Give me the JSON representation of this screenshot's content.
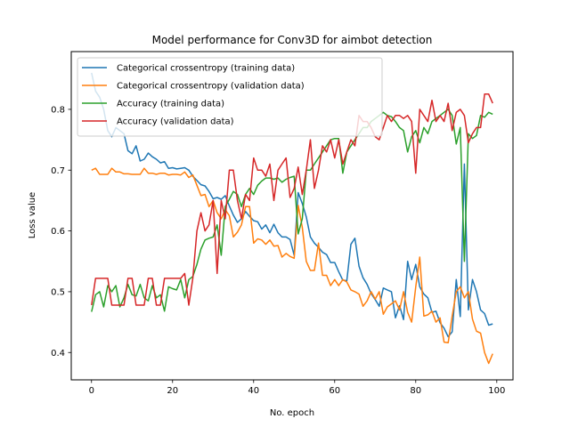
{
  "chart_data": {
    "type": "line",
    "title": "Model performance for Conv3D for aimbot detection",
    "xlabel": "No. epoch",
    "ylabel": "Loss value",
    "xlim": [
      -5,
      104
    ],
    "ylim": [
      0.355,
      0.895
    ],
    "xticks": [
      0,
      20,
      40,
      60,
      80,
      100
    ],
    "yticks": [
      0.4,
      0.5,
      0.6,
      0.7,
      0.8
    ],
    "xtick_labels": [
      "0",
      "20",
      "40",
      "60",
      "80",
      "100"
    ],
    "ytick_labels": [
      "0.4",
      "0.5",
      "0.6",
      "0.7",
      "0.8"
    ],
    "grid": false,
    "legend_position": "upper left",
    "series": [
      {
        "name": "Categorical crossentropy (training data)",
        "color": "#1f77b4",
        "x": [
          0,
          1,
          2,
          3,
          4,
          5,
          6,
          7,
          8,
          9,
          10,
          11,
          12,
          13,
          14,
          15,
          16,
          17,
          18,
          19,
          20,
          21,
          22,
          23,
          24,
          25,
          26,
          27,
          28,
          29,
          30,
          31,
          32,
          33,
          34,
          35,
          36,
          37,
          38,
          39,
          40,
          41,
          42,
          43,
          44,
          45,
          46,
          47,
          48,
          49,
          50,
          51,
          52,
          53,
          54,
          55,
          56,
          57,
          58,
          59,
          60,
          61,
          62,
          63,
          64,
          65,
          66,
          67,
          68,
          69,
          70,
          71,
          72,
          73,
          74,
          75,
          76,
          77,
          78,
          79,
          80,
          81,
          82,
          83,
          84,
          85,
          86,
          87,
          88,
          89,
          90,
          91,
          92,
          93,
          94,
          95,
          96,
          97,
          98,
          99
        ],
        "values": [
          0.86,
          0.83,
          0.82,
          0.8,
          0.765,
          0.755,
          0.77,
          0.765,
          0.76,
          0.732,
          0.727,
          0.74,
          0.715,
          0.718,
          0.728,
          0.722,
          0.718,
          0.712,
          0.714,
          0.703,
          0.704,
          0.702,
          0.703,
          0.704,
          0.7,
          0.69,
          0.683,
          0.676,
          0.674,
          0.665,
          0.653,
          0.655,
          0.652,
          0.658,
          0.641,
          0.626,
          0.614,
          0.62,
          0.632,
          0.624,
          0.617,
          0.615,
          0.603,
          0.61,
          0.597,
          0.611,
          0.597,
          0.59,
          0.59,
          0.586,
          0.56,
          0.663,
          0.645,
          0.623,
          0.59,
          0.58,
          0.573,
          0.565,
          0.561,
          0.548,
          0.548,
          0.533,
          0.519,
          0.518,
          0.578,
          0.588,
          0.542,
          0.523,
          0.512,
          0.497,
          0.487,
          0.476,
          0.506,
          0.503,
          0.5,
          0.457,
          0.477,
          0.454,
          0.55,
          0.52,
          0.545,
          0.508,
          0.496,
          0.49,
          0.466,
          0.468,
          0.449,
          0.44,
          0.426,
          0.434,
          0.52,
          0.459,
          0.71,
          0.47,
          0.52,
          0.5,
          0.47,
          0.464,
          0.445,
          0.447
        ]
      },
      {
        "name": "Categorical crossentropy (validation data)",
        "color": "#ff7f0e",
        "x": [
          0,
          1,
          2,
          3,
          4,
          5,
          6,
          7,
          8,
          9,
          10,
          11,
          12,
          13,
          14,
          15,
          16,
          17,
          18,
          19,
          20,
          21,
          22,
          23,
          24,
          25,
          26,
          27,
          28,
          29,
          30,
          31,
          32,
          33,
          34,
          35,
          36,
          37,
          38,
          39,
          40,
          41,
          42,
          43,
          44,
          45,
          46,
          47,
          48,
          49,
          50,
          51,
          52,
          53,
          54,
          55,
          56,
          57,
          58,
          59,
          60,
          61,
          62,
          63,
          64,
          65,
          66,
          67,
          68,
          69,
          70,
          71,
          72,
          73,
          74,
          75,
          76,
          77,
          78,
          79,
          80,
          81,
          82,
          83,
          84,
          85,
          86,
          87,
          88,
          89,
          90,
          91,
          92,
          93,
          94,
          95,
          96,
          97,
          98,
          99
        ],
        "values": [
          0.7,
          0.703,
          0.693,
          0.693,
          0.693,
          0.703,
          0.697,
          0.697,
          0.694,
          0.694,
          0.693,
          0.693,
          0.693,
          0.703,
          0.695,
          0.695,
          0.693,
          0.695,
          0.695,
          0.692,
          0.693,
          0.693,
          0.692,
          0.697,
          0.688,
          0.692,
          0.675,
          0.658,
          0.66,
          0.64,
          0.65,
          0.63,
          0.62,
          0.635,
          0.625,
          0.59,
          0.598,
          0.61,
          0.64,
          0.64,
          0.58,
          0.587,
          0.585,
          0.578,
          0.585,
          0.575,
          0.576,
          0.557,
          0.563,
          0.558,
          0.555,
          0.642,
          0.606,
          0.55,
          0.535,
          0.535,
          0.58,
          0.527,
          0.527,
          0.51,
          0.52,
          0.51,
          0.52,
          0.516,
          0.503,
          0.5,
          0.496,
          0.476,
          0.485,
          0.5,
          0.488,
          0.5,
          0.463,
          0.475,
          0.48,
          0.485,
          0.47,
          0.5,
          0.466,
          0.45,
          0.508,
          0.557,
          0.46,
          0.462,
          0.468,
          0.45,
          0.457,
          0.417,
          0.416,
          0.46,
          0.5,
          0.508,
          0.49,
          0.5,
          0.455,
          0.435,
          0.432,
          0.4,
          0.382,
          0.398
        ]
      },
      {
        "name": "Accuracy (training data)",
        "color": "#2ca02c",
        "x": [
          0,
          1,
          2,
          3,
          4,
          5,
          6,
          7,
          8,
          9,
          10,
          11,
          12,
          13,
          14,
          15,
          16,
          17,
          18,
          19,
          20,
          21,
          22,
          23,
          24,
          25,
          26,
          27,
          28,
          29,
          30,
          31,
          32,
          33,
          34,
          35,
          36,
          37,
          38,
          39,
          40,
          41,
          42,
          43,
          44,
          45,
          46,
          47,
          48,
          49,
          50,
          51,
          52,
          53,
          54,
          55,
          56,
          57,
          58,
          59,
          60,
          61,
          62,
          63,
          64,
          65,
          66,
          67,
          68,
          69,
          70,
          71,
          72,
          73,
          74,
          75,
          76,
          77,
          78,
          79,
          80,
          81,
          82,
          83,
          84,
          85,
          86,
          87,
          88,
          89,
          90,
          91,
          92,
          93,
          94,
          95,
          96,
          97,
          98,
          99
        ],
        "values": [
          0.467,
          0.495,
          0.5,
          0.475,
          0.51,
          0.5,
          0.51,
          0.475,
          0.49,
          0.512,
          0.495,
          0.493,
          0.512,
          0.49,
          0.485,
          0.51,
          0.49,
          0.495,
          0.468,
          0.508,
          0.505,
          0.503,
          0.52,
          0.49,
          0.52,
          0.525,
          0.545,
          0.57,
          0.585,
          0.588,
          0.59,
          0.61,
          0.56,
          0.64,
          0.652,
          0.665,
          0.66,
          0.64,
          0.66,
          0.67,
          0.66,
          0.675,
          0.682,
          0.687,
          0.687,
          0.685,
          0.687,
          0.68,
          0.685,
          0.688,
          0.69,
          0.595,
          0.62,
          0.7,
          0.7,
          0.71,
          0.72,
          0.73,
          0.74,
          0.75,
          0.752,
          0.752,
          0.695,
          0.73,
          0.74,
          0.75,
          0.76,
          0.77,
          0.77,
          0.78,
          0.785,
          0.79,
          0.795,
          0.79,
          0.788,
          0.78,
          0.77,
          0.765,
          0.73,
          0.755,
          0.765,
          0.745,
          0.77,
          0.76,
          0.78,
          0.785,
          0.79,
          0.795,
          0.8,
          0.79,
          0.743,
          0.77,
          0.55,
          0.76,
          0.752,
          0.757,
          0.79,
          0.787,
          0.795,
          0.792
        ]
      },
      {
        "name": "Accuracy (validation data)",
        "color": "#d62728",
        "x": [
          0,
          1,
          2,
          3,
          4,
          5,
          6,
          7,
          8,
          9,
          10,
          11,
          12,
          13,
          14,
          15,
          16,
          17,
          18,
          19,
          20,
          21,
          22,
          23,
          24,
          25,
          26,
          27,
          28,
          29,
          30,
          31,
          32,
          33,
          34,
          35,
          36,
          37,
          38,
          39,
          40,
          41,
          42,
          43,
          44,
          45,
          46,
          47,
          48,
          49,
          50,
          51,
          52,
          53,
          54,
          55,
          56,
          57,
          58,
          59,
          60,
          61,
          62,
          63,
          64,
          65,
          66,
          67,
          68,
          69,
          70,
          71,
          72,
          73,
          74,
          75,
          76,
          77,
          78,
          79,
          80,
          81,
          82,
          83,
          84,
          85,
          86,
          87,
          88,
          89,
          90,
          91,
          92,
          93,
          94,
          95,
          96,
          97,
          98,
          99
        ],
        "values": [
          0.478,
          0.522,
          0.522,
          0.522,
          0.522,
          0.478,
          0.478,
          0.478,
          0.478,
          0.522,
          0.522,
          0.478,
          0.478,
          0.478,
          0.522,
          0.522,
          0.478,
          0.478,
          0.522,
          0.522,
          0.522,
          0.522,
          0.522,
          0.53,
          0.478,
          0.522,
          0.6,
          0.63,
          0.6,
          0.61,
          0.65,
          0.53,
          0.65,
          0.62,
          0.7,
          0.7,
          0.65,
          0.62,
          0.66,
          0.65,
          0.72,
          0.7,
          0.7,
          0.69,
          0.71,
          0.65,
          0.7,
          0.71,
          0.72,
          0.655,
          0.67,
          0.705,
          0.66,
          0.7,
          0.75,
          0.67,
          0.7,
          0.74,
          0.73,
          0.75,
          0.72,
          0.75,
          0.71,
          0.73,
          0.75,
          0.74,
          0.79,
          0.78,
          0.78,
          0.77,
          0.755,
          0.75,
          0.77,
          0.79,
          0.78,
          0.79,
          0.79,
          0.785,
          0.79,
          0.78,
          0.695,
          0.8,
          0.79,
          0.78,
          0.815,
          0.78,
          0.79,
          0.78,
          0.81,
          0.765,
          0.795,
          0.8,
          0.79,
          0.745,
          0.76,
          0.77,
          0.77,
          0.825,
          0.825,
          0.81
        ]
      }
    ]
  }
}
